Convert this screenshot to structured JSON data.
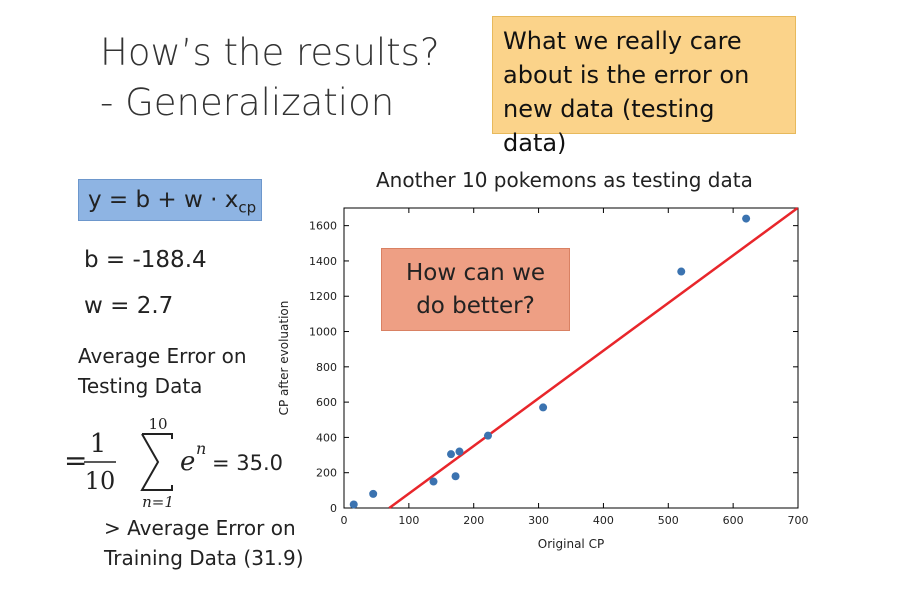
{
  "title": {
    "line1": "How’s the results?",
    "line2": "- Generalization"
  },
  "callout": {
    "line1": "What we really care",
    "line2": "about is the error on",
    "line3": "new data (testing data)"
  },
  "model": {
    "equation_main": "y = b + w · x",
    "equation_sub": "cp",
    "b": "b = -188.4",
    "w": "w = 2.7"
  },
  "testing_error": {
    "label_line1": "Average Error on",
    "label_line2": "Testing Data",
    "eq_sign": "=",
    "frac_num": "1",
    "frac_den": "10",
    "sum_upper": "10",
    "sum_lower": "n=1",
    "term_base": "e",
    "term_sup": "n",
    "value": "= 35.0"
  },
  "training_compare": {
    "line1": "> Average Error on",
    "line2": "Training Data (31.9)"
  },
  "callout_better": {
    "line1": "How can we",
    "line2": "do better?"
  },
  "colors": {
    "callout_bg": "#fbd38a",
    "eq_bg": "#8eb4e3",
    "better_bg": "#ee9f84",
    "points": "#3b73b0",
    "line": "#e8262b"
  },
  "chart_data": {
    "type": "scatter",
    "title": "Another 10 pokemons as testing data",
    "xlabel": "Original CP",
    "ylabel": "CP after evoluation",
    "xlim": [
      0,
      700
    ],
    "ylim": [
      0,
      1700
    ],
    "xticks": [
      0,
      100,
      200,
      300,
      400,
      500,
      600,
      700
    ],
    "yticks": [
      0,
      200,
      400,
      600,
      800,
      1000,
      1200,
      1400,
      1600
    ],
    "points": [
      {
        "x": 15,
        "y": 20
      },
      {
        "x": 45,
        "y": 80
      },
      {
        "x": 138,
        "y": 150
      },
      {
        "x": 165,
        "y": 305
      },
      {
        "x": 172,
        "y": 180
      },
      {
        "x": 178,
        "y": 320
      },
      {
        "x": 222,
        "y": 410
      },
      {
        "x": 307,
        "y": 570
      },
      {
        "x": 520,
        "y": 1340
      },
      {
        "x": 620,
        "y": 1640
      }
    ],
    "fit_line": {
      "b": -188.4,
      "w": 2.7
    }
  }
}
